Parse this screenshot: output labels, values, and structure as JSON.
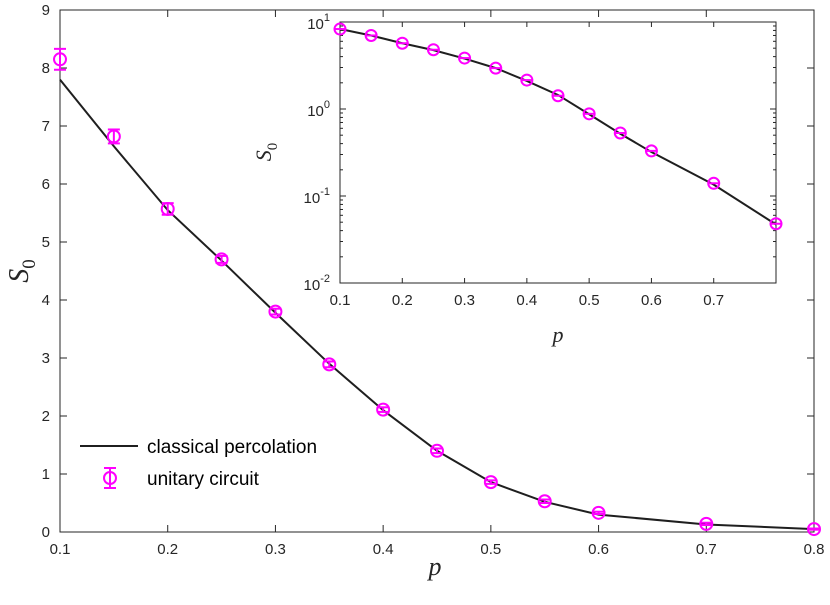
{
  "colors": {
    "curve": "#1f1f1f",
    "markers": "#ff00ff",
    "axes": "#262626"
  },
  "legend": {
    "location": "lower-left",
    "items": [
      {
        "label": "classical percolation",
        "style": "line"
      },
      {
        "label": "unitary circuit",
        "style": "marker-errorbar"
      }
    ]
  },
  "chart_data": [
    {
      "type": "line",
      "panel": "main",
      "xlabel": "p",
      "ylabel_symbol": "S",
      "ylabel_subscript": "0",
      "xlim": [
        0.1,
        0.8
      ],
      "ylim": [
        0,
        9
      ],
      "x_ticks": [
        "0.1",
        "0.2",
        "0.3",
        "0.4",
        "0.5",
        "0.6",
        "0.7",
        "0.8"
      ],
      "y_ticks": [
        "0",
        "1",
        "2",
        "3",
        "4",
        "5",
        "6",
        "7",
        "8",
        "9"
      ],
      "grid": false,
      "series": [
        {
          "name": "classical percolation",
          "kind": "line",
          "x": [
            0.1,
            0.15,
            0.2,
            0.25,
            0.3,
            0.35,
            0.4,
            0.45,
            0.5,
            0.55,
            0.6,
            0.7,
            0.8
          ],
          "y": [
            7.8,
            6.65,
            5.55,
            4.68,
            3.78,
            2.9,
            2.1,
            1.4,
            0.86,
            0.52,
            0.3,
            0.13,
            0.05
          ]
        },
        {
          "name": "unitary circuit",
          "kind": "scatter-errorbar",
          "x": [
            0.1,
            0.15,
            0.2,
            0.25,
            0.3,
            0.35,
            0.4,
            0.45,
            0.5,
            0.55,
            0.6,
            0.7,
            0.8
          ],
          "y": [
            8.15,
            6.82,
            5.57,
            4.7,
            3.8,
            2.89,
            2.11,
            1.4,
            0.86,
            0.53,
            0.33,
            0.14,
            0.05
          ],
          "err": [
            0.18,
            0.12,
            0.1,
            0.06,
            0.05,
            0.05,
            0.04,
            0.04,
            0.03,
            0.03,
            0.02,
            0.02,
            0.01
          ]
        }
      ]
    },
    {
      "type": "line",
      "panel": "inset",
      "yscale": "log",
      "xlabel": "p",
      "ylabel_symbol": "S",
      "ylabel_subscript": "0",
      "xlim": [
        0.1,
        0.8
      ],
      "ylim": [
        0.01,
        10
      ],
      "x_ticks": [
        "0.1",
        "0.2",
        "0.3",
        "0.4",
        "0.5",
        "0.6",
        "0.7"
      ],
      "y_ticks": [
        {
          "base": "10",
          "exp": "1",
          "value": 10
        },
        {
          "base": "10",
          "exp": "0",
          "value": 1
        },
        {
          "base": "10",
          "exp": "-1",
          "value": 0.1
        },
        {
          "base": "10",
          "exp": "-2",
          "value": 0.01
        }
      ],
      "grid": false,
      "series": [
        {
          "name": "classical percolation",
          "kind": "line",
          "x": [
            0.1,
            0.15,
            0.2,
            0.25,
            0.3,
            0.35,
            0.4,
            0.45,
            0.5,
            0.55,
            0.6,
            0.7,
            0.8
          ],
          "y": [
            8.3,
            7.0,
            5.7,
            4.75,
            3.8,
            2.95,
            2.1,
            1.45,
            0.87,
            0.52,
            0.32,
            0.135,
            0.047
          ]
        },
        {
          "name": "unitary circuit",
          "kind": "scatter",
          "x": [
            0.1,
            0.15,
            0.2,
            0.25,
            0.3,
            0.35,
            0.4,
            0.45,
            0.5,
            0.55,
            0.6,
            0.7,
            0.8
          ],
          "y": [
            8.3,
            7.0,
            5.7,
            4.8,
            3.85,
            2.95,
            2.15,
            1.42,
            0.88,
            0.53,
            0.33,
            0.14,
            0.048
          ]
        }
      ]
    }
  ]
}
